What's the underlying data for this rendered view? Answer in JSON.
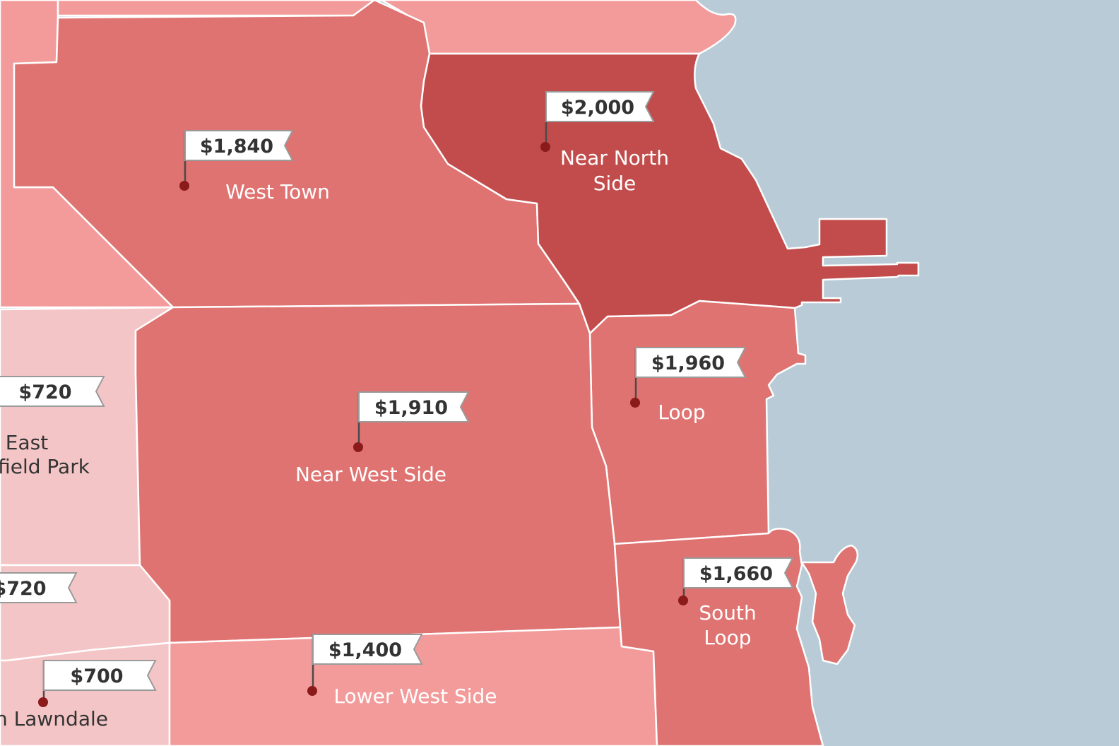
{
  "colors": {
    "water": "#b9cbd6",
    "rent_very_high": "#c24c4b",
    "rent_high": "#df7371",
    "rent_mid": "#f29b9a",
    "rent_low": "#f4c5c6",
    "label_on_dark": "#ffffff",
    "label_on_light": "#333333",
    "pin": "#8b1a1a"
  },
  "neighborhoods": [
    {
      "id": "near-north-side",
      "name_lines": [
        "Near North",
        "Side"
      ],
      "rent": "$2,000",
      "shade": "very-high"
    },
    {
      "id": "west-town",
      "name_lines": [
        "West Town"
      ],
      "rent": "$1,840",
      "shade": "high"
    },
    {
      "id": "near-west-side",
      "name_lines": [
        "Near West Side"
      ],
      "rent": "$1,910",
      "shade": "high"
    },
    {
      "id": "loop",
      "name_lines": [
        "Loop"
      ],
      "rent": "$1,960",
      "shade": "high"
    },
    {
      "id": "south-loop",
      "name_lines": [
        "South",
        "Loop"
      ],
      "rent": "$1,660",
      "shade": "high"
    },
    {
      "id": "lower-west-side",
      "name_lines": [
        "Lower West Side"
      ],
      "rent": "$1,400",
      "shade": "mid"
    },
    {
      "id": "east-garfield-park",
      "name_lines": [
        "East",
        "field Park"
      ],
      "rent": "$720",
      "shade": "low"
    },
    {
      "id": "unnamed-west",
      "name_lines": [],
      "rent": "$720",
      "shade": "low"
    },
    {
      "id": "north-lawndale",
      "name_lines": [
        "n Lawndale"
      ],
      "rent": "$700",
      "shade": "low"
    }
  ]
}
